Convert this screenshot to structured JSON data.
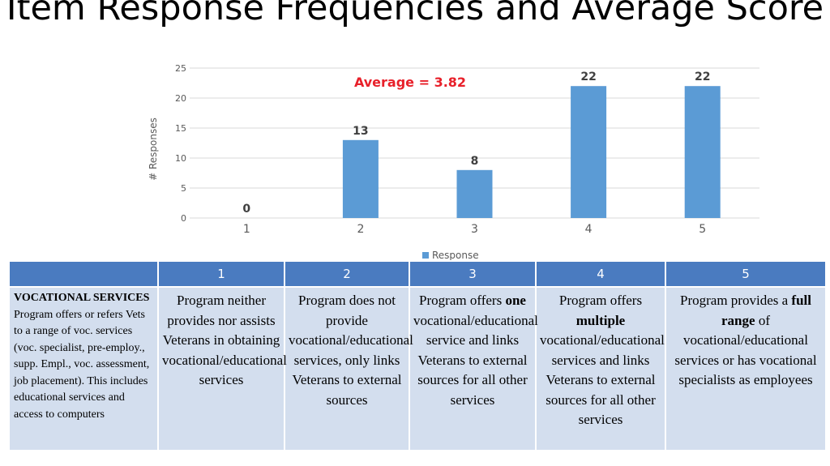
{
  "slide": {
    "title": "Item Response Frequencies and Average Score"
  },
  "chart_data": {
    "type": "bar",
    "categories": [
      "1",
      "2",
      "3",
      "4",
      "5"
    ],
    "series": [
      {
        "name": "Response",
        "values": [
          0,
          13,
          8,
          22,
          22
        ]
      }
    ],
    "data_labels": [
      "0",
      "13",
      "8",
      "22",
      "22"
    ],
    "annotation": "Average = 3.82",
    "xlabel": "",
    "ylabel": "# Responses",
    "ylim": [
      0,
      25
    ],
    "yticks": [
      0,
      5,
      10,
      15,
      20,
      25
    ],
    "grid": true,
    "legend": "bottom",
    "colors": {
      "bar": "#5b9bd5",
      "annotation": "#e8202a",
      "grid": "#d9d9d9"
    }
  },
  "rubric": {
    "header": [
      "",
      "1",
      "2",
      "3",
      "4",
      "5"
    ],
    "item_title": "VOCATIONAL SERVICES",
    "item_description": "Program offers or refers Vets to a range of voc. services (voc. specialist, pre-employ., supp. Empl., voc. assessment, job placement). This includes educational services and access to computers",
    "anchors": {
      "a1": "Program neither provides nor assists Veterans in obtaining vocational/educational services",
      "a2": "Program does not provide vocational/educational services, only links Veterans to external sources",
      "a3_pre": "Program offers ",
      "a3_bold": "one",
      "a3_post": " vocational/educational service and links Veterans to external sources for all other services",
      "a4_pre": "Program offers ",
      "a4_bold": "multiple",
      "a4_post": " vocational/educational services and links Veterans to external sources for all other services",
      "a5_pre": "Program provides a ",
      "a5_bold": "full range",
      "a5_post": " of vocational/educational services or has vocational specialists as employees"
    }
  }
}
